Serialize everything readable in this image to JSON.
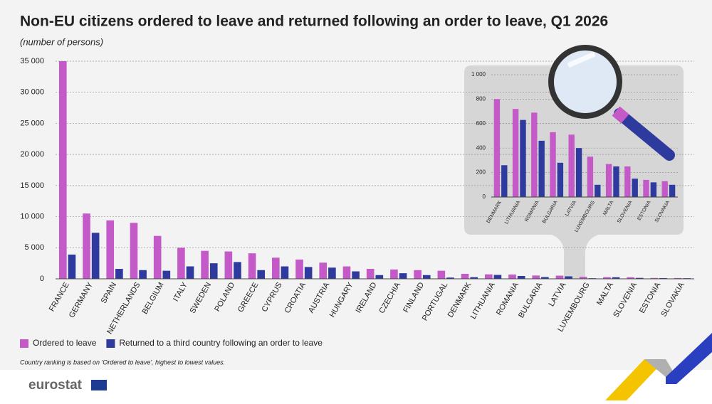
{
  "title": "Non-EU citizens ordered to leave and returned following an order to leave, Q1 2026",
  "subtitle": "(number of persons)",
  "note": "Country ranking is based on 'Ordered to leave', highest to lowest values.",
  "logo": "eurostat",
  "chart_data": [
    {
      "type": "bar",
      "categories": [
        "FRANCE",
        "GERMANY",
        "SPAIN",
        "NETHERLANDS",
        "BELGIUM",
        "ITALY",
        "SWEDEN",
        "POLAND",
        "GREECE",
        "CYPRUS",
        "CROATIA",
        "AUSTRIA",
        "HUNGARY",
        "IRELAND",
        "CZECHIA",
        "FINLAND",
        "PORTUGAL",
        "DENMARK",
        "LITHUANIA",
        "ROMANIA",
        "BULGARIA",
        "LATVIA",
        "LUXEMBOURG",
        "MALTA",
        "SLOVENIA",
        "ESTONIA",
        "SLOVAKIA"
      ],
      "series": [
        {
          "name": "Ordered to leave",
          "color": "#c45ac8",
          "values": [
            35000,
            10500,
            9400,
            9000,
            6900,
            5000,
            4500,
            4400,
            4100,
            3400,
            3100,
            2600,
            2000,
            1600,
            1500,
            1400,
            1300,
            800,
            720,
            690,
            530,
            510,
            330,
            270,
            250,
            140,
            130
          ]
        },
        {
          "name": "Returned to a third country following an order to leave",
          "color": "#2e3a9e",
          "values": [
            3900,
            7400,
            1600,
            1400,
            1300,
            2000,
            2500,
            2700,
            1400,
            2000,
            1900,
            1800,
            1200,
            600,
            900,
            600,
            200,
            260,
            630,
            460,
            280,
            400,
            100,
            250,
            150,
            120,
            100
          ]
        }
      ],
      "ylim": [
        0,
        35000
      ],
      "yticks": [
        0,
        {
          "value": 5000,
          "label": "5 000"
        },
        {
          "value": 10000,
          "label": "10 000"
        },
        {
          "value": 15000,
          "label": "15 000"
        },
        {
          "value": 20000,
          "label": "20 000"
        },
        {
          "value": 25000,
          "label": "25 000"
        },
        {
          "value": 30000,
          "label": "30 000"
        },
        {
          "value": 35000,
          "label": "35 000"
        }
      ],
      "grid": true
    },
    {
      "type": "bar",
      "categories": [
        "DENMARK",
        "LITHUANIA",
        "ROMANIA",
        "BULGARIA",
        "LATVIA",
        "LUXEMBOURG",
        "MALTA",
        "SLOVENIA",
        "ESTONIA",
        "SLOVAKIA"
      ],
      "series": [
        {
          "name": "Ordered to leave",
          "color": "#c45ac8",
          "values": [
            800,
            720,
            690,
            530,
            510,
            330,
            270,
            250,
            140,
            130
          ]
        },
        {
          "name": "Returned to a third country following an order to leave",
          "color": "#2e3a9e",
          "values": [
            260,
            630,
            460,
            280,
            400,
            100,
            250,
            150,
            120,
            100
          ]
        }
      ],
      "ylim": [
        0,
        1000
      ],
      "yticks": [
        0,
        200,
        400,
        600,
        800,
        {
          "value": 1000,
          "label": "1 000"
        }
      ],
      "grid": true
    }
  ]
}
